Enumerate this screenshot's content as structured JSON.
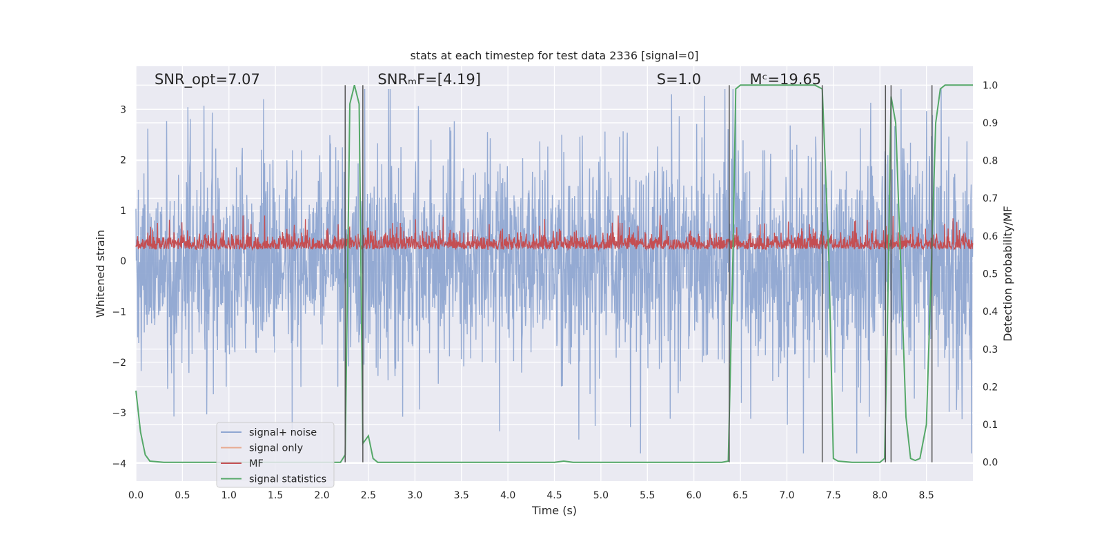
{
  "chart_data": {
    "type": "line",
    "title": "stats at each timestep for test data 2336 [signal=0]",
    "xlabel": "Time (s)",
    "ylabel": "Whitened strain",
    "y2label": "Detection probability/MF",
    "xlim": [
      0.0,
      9.0
    ],
    "ylim": [
      -4.35,
      3.85
    ],
    "y2lim": [
      -0.05,
      1.05
    ],
    "x_ticks": [
      0.0,
      0.5,
      1.0,
      1.5,
      2.0,
      2.5,
      3.0,
      3.5,
      4.0,
      4.5,
      5.0,
      5.5,
      6.0,
      6.5,
      7.0,
      7.5,
      8.0,
      8.5
    ],
    "x_tick_labels": [
      "0.0",
      "0.5",
      "1.0",
      "1.5",
      "2.0",
      "2.5",
      "3.0",
      "3.5",
      "4.0",
      "4.5",
      "5.0",
      "5.5",
      "6.0",
      "6.5",
      "7.0",
      "7.5",
      "8.0",
      "8.5"
    ],
    "y_ticks": [
      3,
      2,
      1,
      0,
      -1,
      -2,
      -3,
      -4
    ],
    "y_tick_labels": [
      "3",
      "2",
      "1",
      "0",
      "−1",
      "−2",
      "−3",
      "−4"
    ],
    "y2_ticks": [
      1.0,
      0.9,
      0.8,
      0.7,
      0.6,
      0.5,
      0.4,
      0.3,
      0.2,
      0.1,
      0.0
    ],
    "y2_tick_labels": [
      "1.0",
      "0.9",
      "0.8",
      "0.7",
      "0.6",
      "0.5",
      "0.4",
      "0.3",
      "0.2",
      "0.1",
      "0.0"
    ],
    "grid": true,
    "legend_position": "lower-left",
    "annotations": [
      {
        "text": "SNR_opt=7.07",
        "x": 0.2
      },
      {
        "text": "SNRₘF=[4.19]",
        "x": 2.6
      },
      {
        "text": "S=1.0",
        "x": 5.6
      },
      {
        "text": "Mᶜ=19.65",
        "x": 6.6
      }
    ],
    "vertical_lines": [
      2.25,
      2.44,
      6.38,
      7.38,
      8.06,
      8.12,
      8.56
    ],
    "series": [
      {
        "name": "signal+ noise",
        "color": "#8fa6d1",
        "description": "whitened noisy strain, amplitude roughly -3.8 to 3.4",
        "amplitude_range": [
          -3.8,
          3.4
        ]
      },
      {
        "name": "signal only",
        "color": "#e8a98f",
        "values": []
      },
      {
        "name": "MF",
        "color": "#c44e52",
        "description": "matched filter output on left axis, range about 0.0 to 0.9",
        "amplitude_range": [
          0.0,
          0.9
        ]
      },
      {
        "name": "signal statistics",
        "color": "#55a868",
        "axis": "right",
        "x": [
          0.0,
          0.05,
          0.1,
          0.15,
          0.3,
          1.0,
          2.0,
          2.2,
          2.25,
          2.3,
          2.35,
          2.4,
          2.44,
          2.5,
          2.55,
          2.6,
          3.0,
          4.0,
          4.5,
          4.6,
          4.7,
          5.0,
          6.0,
          6.3,
          6.37,
          6.42,
          6.45,
          6.5,
          7.0,
          7.3,
          7.38,
          7.45,
          7.5,
          7.55,
          7.7,
          8.0,
          8.05,
          8.08,
          8.12,
          8.17,
          8.22,
          8.28,
          8.33,
          8.38,
          8.43,
          8.5,
          8.55,
          8.6,
          8.65,
          8.7,
          9.0
        ],
        "values": [
          0.19,
          0.08,
          0.02,
          0.003,
          0.0,
          0.0,
          0.0,
          0.0,
          0.02,
          0.95,
          1.0,
          0.95,
          0.05,
          0.07,
          0.01,
          0.0,
          0.0,
          0.0,
          0.0,
          0.003,
          0.0,
          0.0,
          0.0,
          0.0,
          0.003,
          0.55,
          0.99,
          1.0,
          1.0,
          1.0,
          0.99,
          0.55,
          0.01,
          0.003,
          0.0,
          0.0,
          0.01,
          0.35,
          0.97,
          0.9,
          0.55,
          0.12,
          0.01,
          0.005,
          0.01,
          0.1,
          0.5,
          0.9,
          0.99,
          1.0,
          1.0
        ]
      }
    ]
  }
}
